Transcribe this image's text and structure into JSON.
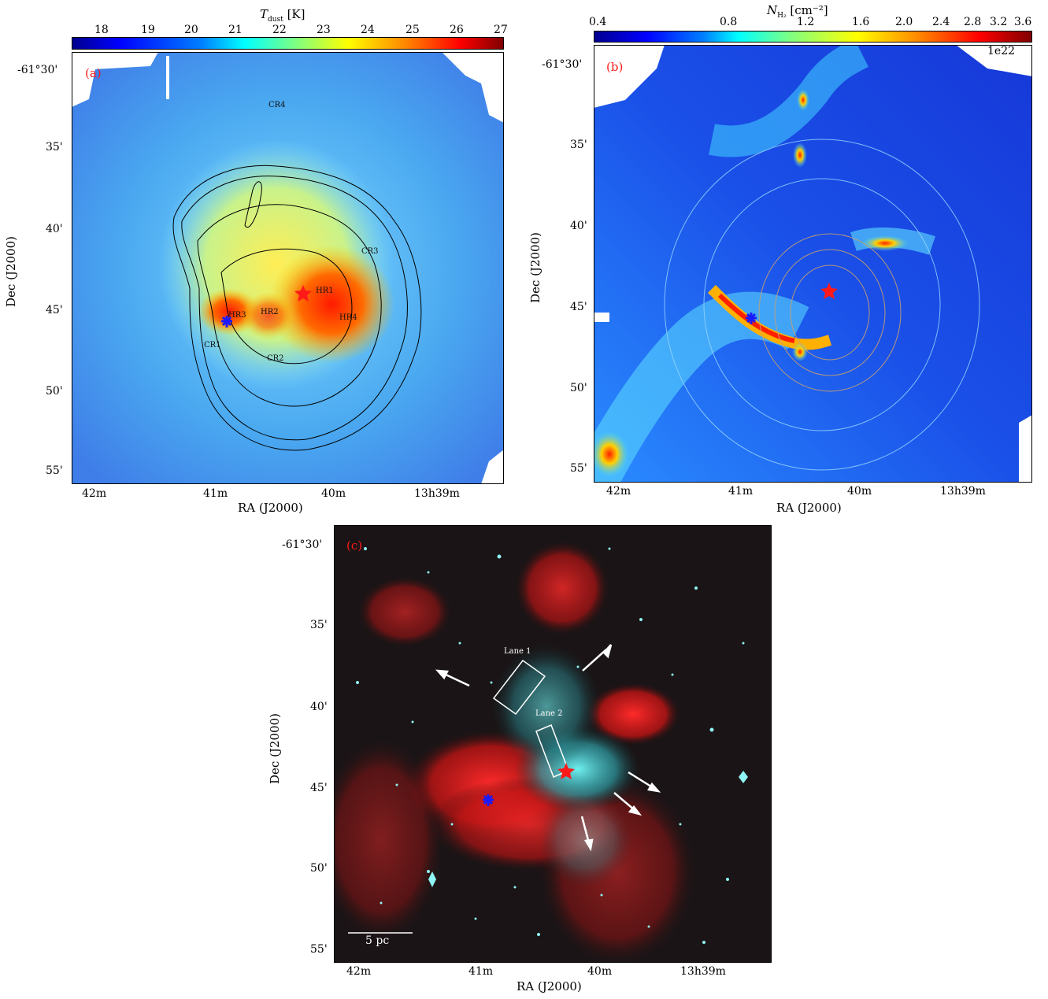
{
  "panel_a": {
    "tag": "(a)",
    "colorbar": {
      "title_symbol": "T",
      "title_sub": "dust",
      "title_unit": " [K]",
      "ticks": [
        "18",
        "19",
        "20",
        "21",
        "22",
        "23",
        "24",
        "25",
        "26",
        "27"
      ]
    },
    "labels": [
      "CR4",
      "CR3",
      "HR1",
      "HR2",
      "HR3",
      "HR4",
      "CR1",
      "CR2"
    ],
    "y_ticks": [
      "-61°30'",
      "35'",
      "40'",
      "45'",
      "50'",
      "55'"
    ],
    "x_ticks": [
      "42m",
      "41m",
      "40m",
      "13h39m"
    ],
    "xlabel": "RA (J2000)",
    "ylabel": "Dec (J2000)"
  },
  "panel_b": {
    "tag": "(b)",
    "colorbar": {
      "title_symbol": "N",
      "title_sub": "H₂",
      "title_unit": " [cm⁻²]",
      "ticks": [
        "0.4",
        "0.8",
        "1.2",
        "1.6",
        "2.0",
        "2.4",
        "2.8",
        "3.2",
        "3.6"
      ],
      "multiplier": "1e22"
    },
    "y_ticks": [
      "-61°30'",
      "35'",
      "40'",
      "45'",
      "50'",
      "55'"
    ],
    "x_ticks": [
      "42m",
      "41m",
      "40m",
      "13h39m"
    ],
    "xlabel": "RA (J2000)",
    "ylabel": "Dec (J2000)"
  },
  "panel_c": {
    "tag": "(c)",
    "lane1": "Lane 1",
    "lane2": "Lane 2",
    "scale_bar": "5 pc",
    "y_ticks": [
      "-61°30'",
      "35'",
      "40'",
      "45'",
      "50'",
      "55'"
    ],
    "x_ticks": [
      "42m",
      "41m",
      "40m",
      "13h39m"
    ],
    "xlabel": "RA (J2000)",
    "ylabel": "Dec (J2000)"
  },
  "colors": {
    "star_red": "#ff1a1a",
    "star_blue": "#1a1aff",
    "panel_tag": "#ff1a1a"
  }
}
